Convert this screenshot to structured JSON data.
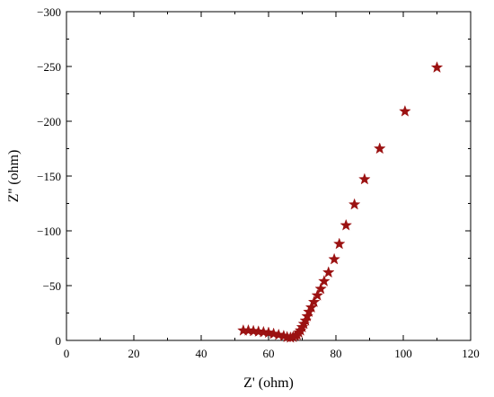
{
  "chart_data": {
    "type": "scatter",
    "xlabel": "Z' (ohm)",
    "ylabel": "Z'' (ohm)",
    "xlim": [
      0,
      120
    ],
    "ylim": [
      0,
      -300
    ],
    "x_ticks": [
      "0",
      "20",
      "40",
      "60",
      "80",
      "100",
      "120"
    ],
    "y_ticks": [
      "0",
      "−50",
      "−100",
      "−150",
      "−200",
      "−250",
      "−300"
    ],
    "grid": false,
    "legend": "none",
    "marker": "star",
    "marker_color": "#9b1111",
    "series": [
      {
        "x": [
          52.5,
          54,
          55.5,
          57,
          58.5,
          60,
          61.5,
          63,
          64.5,
          65.5,
          66.5,
          67.3,
          68,
          68.5,
          69,
          69.5,
          70,
          70.5,
          71,
          71.5,
          72,
          72.7,
          73.5,
          74.5,
          75.5,
          76.5,
          77.8,
          79.5,
          81,
          83,
          85.5,
          88.5,
          93,
          100.5,
          110
        ],
        "y": [
          -9,
          -9,
          -8.5,
          -8,
          -7.5,
          -7,
          -6,
          -5,
          -4,
          -3,
          -2.5,
          -3,
          -4,
          -5,
          -7,
          -9,
          -12,
          -15,
          -18,
          -22,
          -26,
          -30,
          -35,
          -41,
          -47,
          -54,
          -62,
          -74,
          -88,
          -105,
          -124,
          -147,
          -175,
          -209,
          -249
        ]
      }
    ]
  }
}
